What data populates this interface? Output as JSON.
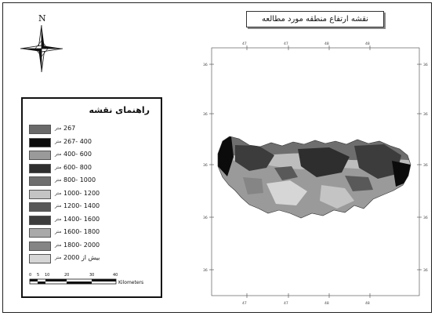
{
  "map": {
    "title": "نقشه ارتفاع منطقه مورد مطالعه",
    "north_label": "N",
    "top_ticks": [
      "47",
      "47",
      "48",
      "48"
    ],
    "bottom_ticks": [
      "47",
      "47",
      "48",
      "48"
    ],
    "left_ticks": [
      "36",
      "36",
      "36",
      "36",
      "36"
    ],
    "right_ticks": [
      "36",
      "36",
      "36",
      "36",
      "36"
    ]
  },
  "legend": {
    "title": "راهنمای نقشه",
    "unit": "متر",
    "classes": [
      {
        "range": "267",
        "color": "#6a6a6a"
      },
      {
        "range": "267- 400",
        "color": "#0b0b0b"
      },
      {
        "range": "400- 600",
        "color": "#9a9a9a"
      },
      {
        "range": "600- 800",
        "color": "#2e2e2e"
      },
      {
        "range": "800- 1000",
        "color": "#6e6e6e"
      },
      {
        "range": "1000- 1200",
        "color": "#c4c4c4"
      },
      {
        "range": "1200- 1400",
        "color": "#595959"
      },
      {
        "range": "1400- 1600",
        "color": "#3c3c3c"
      },
      {
        "range": "1600- 1800",
        "color": "#a9a9a9"
      },
      {
        "range": "1800- 2000",
        "color": "#858585"
      },
      {
        "range": "2000 بیش از",
        "color": "#d6d6d6"
      }
    ],
    "scale": {
      "ticks": [
        "0",
        "5",
        "10",
        "20",
        "30",
        "40"
      ],
      "unit": "Kilometers"
    }
  }
}
